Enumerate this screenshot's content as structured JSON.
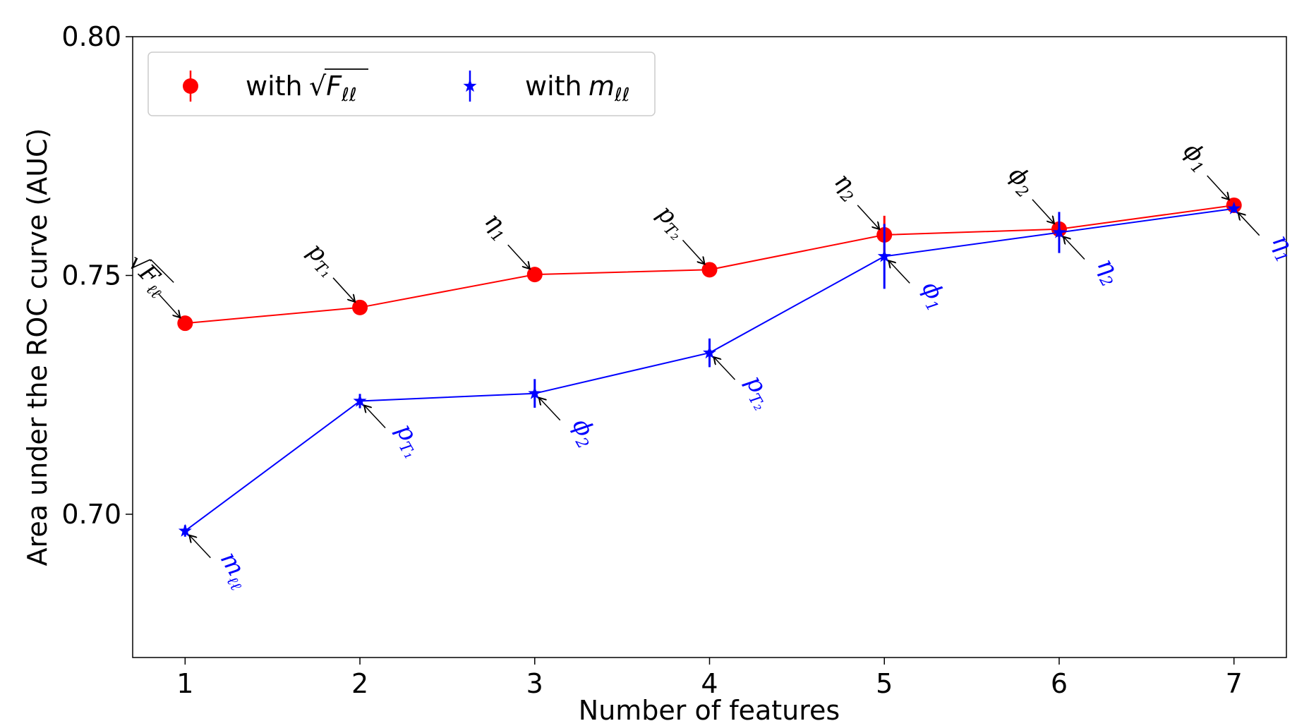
{
  "chart_data": {
    "type": "line",
    "xlabel": "Number of features",
    "ylabel": "Area under the ROC curve (AUC)",
    "xlim": [
      0.7,
      7.3
    ],
    "ylim": [
      0.67,
      0.8
    ],
    "x_ticks": [
      "1",
      "2",
      "3",
      "4",
      "5",
      "6",
      "7"
    ],
    "y_ticks": [
      "0.70",
      "0.75",
      "0.80"
    ],
    "grid": false,
    "legend_position": "top-left",
    "series": [
      {
        "name": "with √F_ℓℓ",
        "legend_text": "with",
        "legend_symbol": "F",
        "legend_sub": "ℓℓ",
        "color": "#ff0000",
        "marker": "circle",
        "x": [
          1,
          2,
          3,
          4,
          5,
          6,
          7
        ],
        "y": [
          0.74,
          0.7433,
          0.7502,
          0.7512,
          0.7585,
          0.7597,
          0.7647
        ],
        "yerr": [
          0.0005,
          0.0007,
          0.0006,
          0.0005,
          0.004,
          0.001,
          0.0006
        ],
        "annotations": [
          {
            "text": "F",
            "sub": "ℓℓ",
            "sqrt": true
          },
          {
            "text": "p",
            "sub": "T₁"
          },
          {
            "text": "η",
            "sub": "1"
          },
          {
            "text": "p",
            "sub": "T₂"
          },
          {
            "text": "η",
            "sub": "2"
          },
          {
            "text": "ϕ",
            "sub": "2"
          },
          {
            "text": "ϕ",
            "sub": "1"
          }
        ]
      },
      {
        "name": "with m_ℓℓ",
        "legend_text": "with",
        "legend_symbol": "m",
        "legend_sub": "ℓℓ",
        "color": "#0000ff",
        "marker": "star",
        "x": [
          1,
          2,
          3,
          4,
          5,
          6,
          7
        ],
        "y": [
          0.6965,
          0.7237,
          0.7253,
          0.7338,
          0.754,
          0.759,
          0.764
        ],
        "yerr": [
          0.0012,
          0.0015,
          0.003,
          0.003,
          0.0068,
          0.0043,
          0.0008
        ],
        "annotations": [
          {
            "text": "m",
            "sub": "ℓℓ"
          },
          {
            "text": "p",
            "sub": "T₁"
          },
          {
            "text": "ϕ",
            "sub": "2"
          },
          {
            "text": "p",
            "sub": "T₂"
          },
          {
            "text": "ϕ",
            "sub": "1"
          },
          {
            "text": "η",
            "sub": "2"
          },
          {
            "text": "η",
            "sub": "1"
          }
        ]
      }
    ]
  }
}
